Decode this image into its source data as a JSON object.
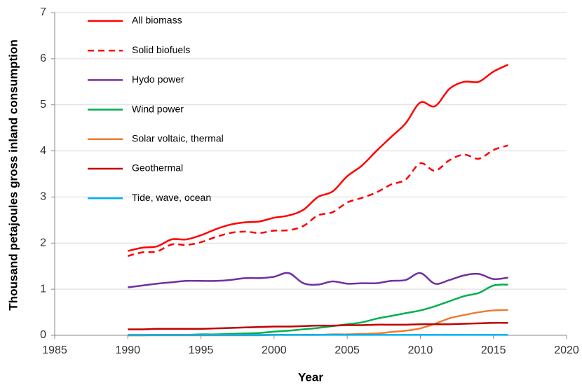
{
  "chart_data": {
    "type": "line",
    "x_label": "Year",
    "y_label": "Thousand petajoules gross inland consumption",
    "x": [
      1990,
      1991,
      1992,
      1993,
      1994,
      1995,
      1996,
      1997,
      1998,
      1999,
      2000,
      2001,
      2002,
      2003,
      2004,
      2005,
      2006,
      2007,
      2008,
      2009,
      2010,
      2011,
      2012,
      2013,
      2014,
      2015,
      2016
    ],
    "xlim": [
      1985,
      2020
    ],
    "xticks": [
      1985,
      1990,
      1995,
      2000,
      2005,
      2010,
      2015,
      2020
    ],
    "ylim": [
      0,
      7
    ],
    "yticks": [
      0,
      1,
      2,
      3,
      4,
      5,
      6,
      7
    ],
    "grid": true,
    "legend": "upper left",
    "series": [
      {
        "name": "All biomass",
        "color": "#ff0000",
        "style": "solid",
        "values": [
          1.83,
          1.9,
          1.93,
          2.08,
          2.08,
          2.17,
          2.3,
          2.4,
          2.45,
          2.47,
          2.55,
          2.6,
          2.72,
          3.0,
          3.12,
          3.45,
          3.68,
          4.0,
          4.3,
          4.6,
          5.05,
          4.97,
          5.35,
          5.5,
          5.5,
          5.72,
          5.87
        ]
      },
      {
        "name": "Solid biofuels",
        "color": "#ff0000",
        "style": "dashed",
        "values": [
          1.72,
          1.8,
          1.82,
          1.97,
          1.96,
          2.02,
          2.13,
          2.22,
          2.25,
          2.22,
          2.27,
          2.28,
          2.37,
          2.6,
          2.67,
          2.88,
          2.98,
          3.1,
          3.27,
          3.38,
          3.73,
          3.57,
          3.8,
          3.92,
          3.83,
          4.02,
          4.12
        ]
      },
      {
        "name": "Hydo power",
        "color": "#7030a0",
        "style": "solid",
        "values": [
          1.04,
          1.08,
          1.12,
          1.15,
          1.18,
          1.18,
          1.18,
          1.2,
          1.24,
          1.24,
          1.27,
          1.35,
          1.13,
          1.1,
          1.17,
          1.12,
          1.13,
          1.13,
          1.18,
          1.2,
          1.35,
          1.12,
          1.2,
          1.3,
          1.33,
          1.22,
          1.25
        ]
      },
      {
        "name": "Wind power",
        "color": "#00b050",
        "style": "solid",
        "values": [
          0.0,
          0.0,
          0.01,
          0.01,
          0.01,
          0.02,
          0.02,
          0.03,
          0.04,
          0.05,
          0.08,
          0.1,
          0.13,
          0.16,
          0.2,
          0.24,
          0.28,
          0.36,
          0.42,
          0.48,
          0.54,
          0.63,
          0.74,
          0.85,
          0.92,
          1.08,
          1.1
        ]
      },
      {
        "name": "Solar voltaic, thermal",
        "color": "#ed7d31",
        "style": "solid",
        "values": [
          0,
          0,
          0,
          0,
          0,
          0,
          0,
          0,
          0,
          0,
          0.01,
          0.01,
          0.01,
          0.01,
          0.02,
          0.02,
          0.03,
          0.04,
          0.07,
          0.1,
          0.15,
          0.25,
          0.37,
          0.44,
          0.5,
          0.54,
          0.55
        ]
      },
      {
        "name": "Geothermal",
        "color": "#c00000",
        "style": "solid",
        "values": [
          0.13,
          0.13,
          0.14,
          0.14,
          0.14,
          0.14,
          0.15,
          0.16,
          0.17,
          0.18,
          0.19,
          0.19,
          0.2,
          0.21,
          0.21,
          0.22,
          0.22,
          0.23,
          0.23,
          0.23,
          0.24,
          0.24,
          0.24,
          0.25,
          0.26,
          0.27,
          0.27
        ]
      },
      {
        "name": "Tide, wave, ocean",
        "color": "#00b0f0",
        "style": "solid",
        "values": [
          0.01,
          0.01,
          0.01,
          0.01,
          0.01,
          0.01,
          0.01,
          0.01,
          0.01,
          0.01,
          0.01,
          0.01,
          0.01,
          0.01,
          0.01,
          0.01,
          0.01,
          0.01,
          0.01,
          0.01,
          0.01,
          0.01,
          0.01,
          0.01,
          0.01,
          0.01,
          0.01
        ]
      }
    ]
  }
}
